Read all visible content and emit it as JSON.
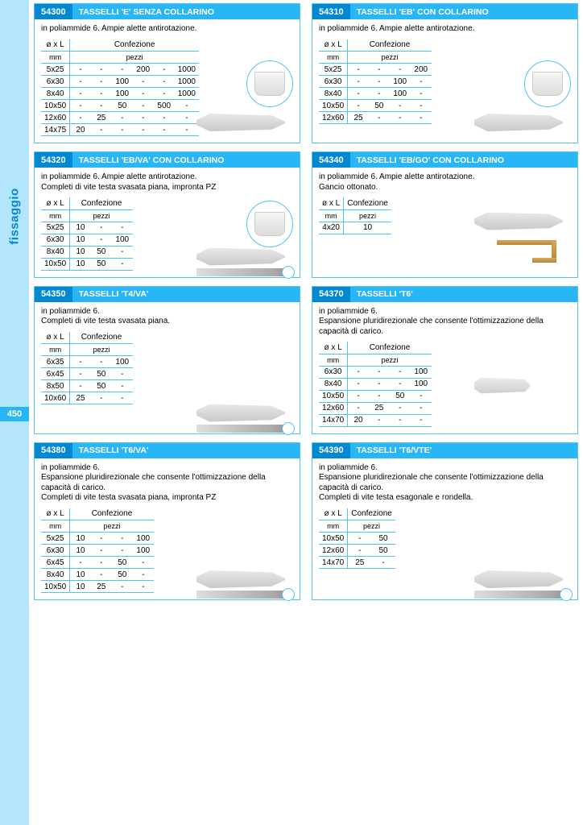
{
  "sidebar": {
    "label": "fissaggio",
    "pageNum": "450"
  },
  "colors": {
    "brandLight": "#b3e5fc",
    "brand": "#29b6f6",
    "brandDark": "#0288d1",
    "border": "#4fc3f7"
  },
  "cards": [
    {
      "code": "54300",
      "title": "TASSELLI 'E' SENZA COLLARINO",
      "desc": "in poliammide 6. Ampie alette antirotazione.",
      "header": {
        "size": "ø x L",
        "sizeUnit": "mm",
        "pack": "Confezione",
        "packUnit": "pezzi"
      },
      "cols": 6,
      "rows": [
        [
          "5x25",
          "-",
          "-",
          "-",
          "200",
          "-",
          "1000"
        ],
        [
          "6x30",
          "-",
          "-",
          "100",
          "-",
          "-",
          "1000"
        ],
        [
          "8x40",
          "-",
          "-",
          "100",
          "-",
          "-",
          "1000"
        ],
        [
          "10x50",
          "-",
          "-",
          "50",
          "-",
          "500",
          "-"
        ],
        [
          "12x60",
          "-",
          "25",
          "-",
          "-",
          "-",
          "-"
        ],
        [
          "14x75",
          "20",
          "-",
          "-",
          "-",
          "-",
          "-"
        ]
      ],
      "showCircle": true,
      "circleTop": 70,
      "anchorBottom": 6
    },
    {
      "code": "54310",
      "title": "TASSELLI 'EB' CON COLLARINO",
      "desc": "in poliammide 6. Ampie alette antirotazione.",
      "header": {
        "size": "ø x L",
        "sizeUnit": "mm",
        "pack": "Confezione",
        "packUnit": "pezzi"
      },
      "cols": 4,
      "rows": [
        [
          "5x25",
          "-",
          "-",
          "-",
          "200"
        ],
        [
          "6x30",
          "-",
          "-",
          "100",
          "-"
        ],
        [
          "8x40",
          "-",
          "-",
          "100",
          "-"
        ],
        [
          "10x50",
          "-",
          "50",
          "-",
          "-"
        ],
        [
          "12x60",
          "25",
          "-",
          "-",
          "-"
        ]
      ],
      "showCircle": true,
      "circleTop": 70,
      "anchorBottom": 6
    },
    {
      "code": "54320",
      "title": "TASSELLI 'EB/VA' CON COLLARINO",
      "desc": "in poliammide 6. Ampie alette antirotazione.\nCompleti di vite testa svasata piana, impronta PZ",
      "header": {
        "size": "ø x L",
        "sizeUnit": "mm",
        "pack": "Confezione",
        "packUnit": "pezzi"
      },
      "cols": 3,
      "rows": [
        [
          "5x25",
          "10",
          "-",
          "-"
        ],
        [
          "6x30",
          "10",
          "-",
          "100"
        ],
        [
          "8x40",
          "10",
          "50",
          "-"
        ],
        [
          "10x50",
          "10",
          "50",
          "-"
        ]
      ],
      "showCircle": true,
      "circleTop": 60,
      "showScrew": true,
      "anchorBottom": 28
    },
    {
      "code": "54340",
      "title": "TASSELLI 'EB/GO' CON COLLARINO",
      "desc": "in poliammide 6. Ampie alette antirotazione.\nGancio ottonato.",
      "header": {
        "size": "ø x L",
        "sizeUnit": "mm",
        "pack": "Confezione",
        "packUnit": "pezzi"
      },
      "cols": 1,
      "rows": [
        [
          "4x20",
          "10"
        ]
      ],
      "showHook": true,
      "anchorBottom": 50
    },
    {
      "code": "54350",
      "title": "TASSELLI 'T4/VA'",
      "desc": "in poliammide 6.\nCompleti di vite testa svasata piana.",
      "header": {
        "size": "ø x L",
        "sizeUnit": "mm",
        "pack": "Confezione",
        "packUnit": "pezzi"
      },
      "cols": 3,
      "rows": [
        [
          "6x35",
          "-",
          "-",
          "100"
        ],
        [
          "6x45",
          "-",
          "50",
          "-"
        ],
        [
          "8x50",
          "-",
          "50",
          "-"
        ],
        [
          "10x60",
          "25",
          "-",
          "-"
        ]
      ],
      "showScrew": true,
      "anchorBottom": 28
    },
    {
      "code": "54370",
      "title": "TASSELLI 'T6'",
      "desc": "in poliammide 6.\nEspansione pluridirezionale che consente l'ottimizzazione della capacità di carico.",
      "header": {
        "size": "ø x L",
        "sizeUnit": "mm",
        "pack": "Confezione",
        "packUnit": "pezzi"
      },
      "cols": 4,
      "rows": [
        [
          "6x30",
          "-",
          "-",
          "-",
          "100"
        ],
        [
          "8x40",
          "-",
          "-",
          "-",
          "100"
        ],
        [
          "10x50",
          "-",
          "-",
          "50",
          "-"
        ],
        [
          "12x60",
          "-",
          "25",
          "-",
          "-"
        ],
        [
          "14x70",
          "20",
          "-",
          "-",
          "-"
        ]
      ],
      "plugOnly": true
    },
    {
      "code": "54380",
      "title": "TASSELLI 'T6/VA'",
      "desc": "in poliammide 6.\nEspansione pluridirezionale che consente l'ottimizzazione della capacità di carico.\nCompleti di vite testa svasata piana, impronta PZ",
      "header": {
        "size": "ø x L",
        "sizeUnit": "mm",
        "pack": "Confezione",
        "packUnit": "pezzi"
      },
      "cols": 4,
      "rows": [
        [
          "5x25",
          "10",
          "-",
          "-",
          "100"
        ],
        [
          "6x30",
          "10",
          "-",
          "-",
          "100"
        ],
        [
          "6x45",
          "-",
          "-",
          "50",
          "-"
        ],
        [
          "8x40",
          "10",
          "-",
          "50",
          "-"
        ],
        [
          "10x50",
          "10",
          "25",
          "-",
          "-"
        ]
      ],
      "showScrew": true,
      "anchorBottom": 28
    },
    {
      "code": "54390",
      "title": "TASSELLI 'T6/VTE'",
      "desc": "in poliammide 6.\nEspansione pluridirezionale che consente l'ottimizzazione della capacità di carico.\nCompleti di vite testa esagonale e rondella.",
      "header": {
        "size": "ø x L",
        "sizeUnit": "mm",
        "pack": "Confezione",
        "packUnit": "pezzi"
      },
      "cols": 2,
      "rows": [
        [
          "10x50",
          "-",
          "50"
        ],
        [
          "12x60",
          "-",
          "50"
        ],
        [
          "14x70",
          "25",
          "-"
        ]
      ],
      "showScrew": true,
      "anchorBottom": 28
    }
  ]
}
